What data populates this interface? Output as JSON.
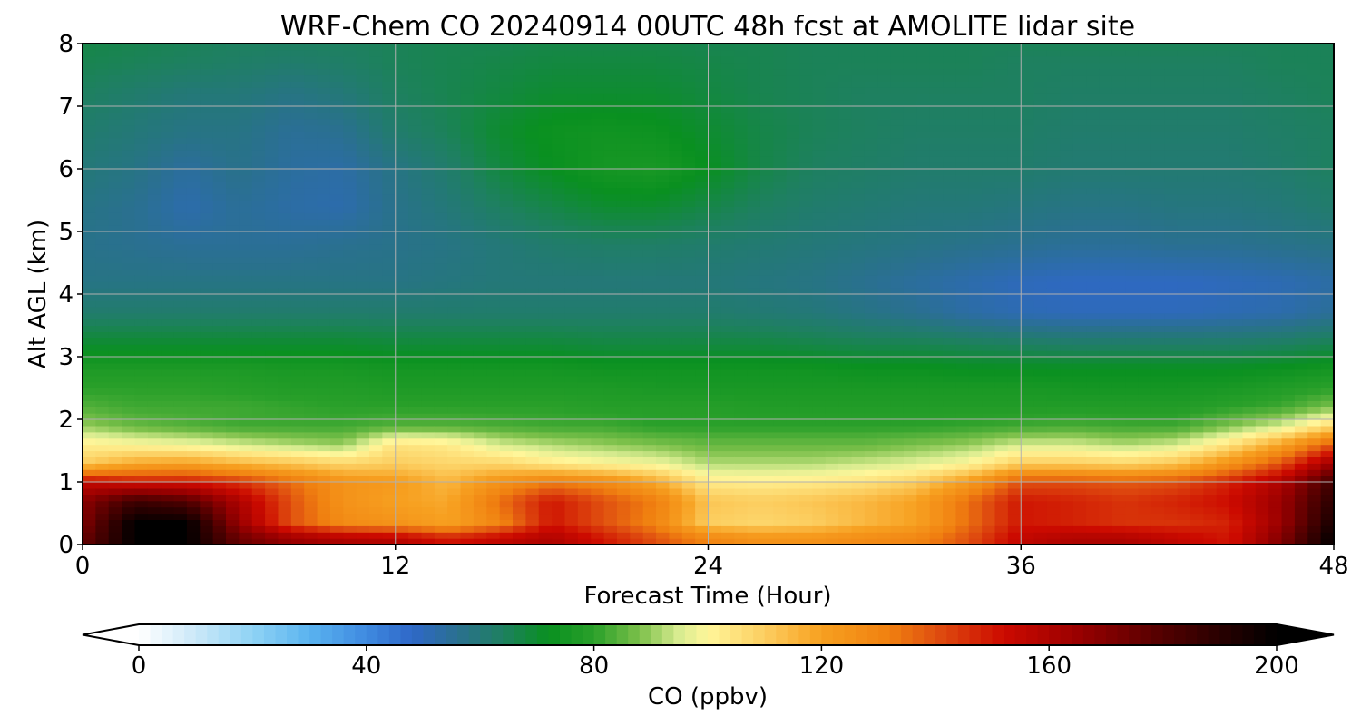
{
  "chart_data": {
    "type": "heatmap",
    "title": "WRF-Chem CO  20240914 00UTC 48h fcst at AMOLITE lidar site",
    "xlabel": "Forecast Time (Hour)",
    "ylabel": "Alt AGL (km)",
    "xlim": [
      0,
      48
    ],
    "ylim": [
      0,
      8
    ],
    "xticks": [
      0,
      12,
      24,
      36,
      48
    ],
    "yticks": [
      0,
      1,
      2,
      3,
      4,
      5,
      6,
      7,
      8
    ],
    "grid": true,
    "x": [
      0,
      2,
      4,
      6,
      8,
      10,
      12,
      14,
      16,
      18,
      20,
      22,
      24,
      26,
      28,
      30,
      32,
      34,
      36,
      38,
      40,
      42,
      44,
      46,
      48
    ],
    "y": [
      0.1,
      0.35,
      0.7,
      1.0,
      1.3,
      1.6,
      1.9,
      2.2,
      2.5,
      2.8,
      3.2,
      3.7,
      4.2,
      4.8,
      5.4,
      6.0,
      6.6,
      7.2,
      7.7,
      8.0
    ],
    "z": [
      [
        175,
        200,
        200,
        175,
        165,
        160,
        158,
        150,
        155,
        160,
        150,
        140,
        130,
        125,
        125,
        128,
        130,
        140,
        155,
        160,
        160,
        155,
        150,
        170,
        200
      ],
      [
        170,
        200,
        200,
        165,
        140,
        128,
        125,
        120,
        130,
        150,
        140,
        130,
        110,
        108,
        110,
        115,
        120,
        135,
        150,
        148,
        145,
        145,
        148,
        165,
        195
      ],
      [
        168,
        185,
        180,
        160,
        140,
        125,
        120,
        118,
        135,
        150,
        140,
        132,
        112,
        110,
        112,
        115,
        120,
        135,
        150,
        148,
        145,
        148,
        152,
        165,
        190
      ],
      [
        155,
        150,
        150,
        145,
        135,
        125,
        122,
        115,
        125,
        132,
        128,
        118,
        103,
        102,
        103,
        105,
        110,
        122,
        140,
        140,
        138,
        140,
        148,
        160,
        185
      ],
      [
        110,
        118,
        120,
        115,
        112,
        108,
        110,
        108,
        108,
        103,
        100,
        98,
        92,
        92,
        92,
        94,
        96,
        100,
        110,
        110,
        108,
        112,
        125,
        140,
        165
      ],
      [
        102,
        100,
        98,
        95,
        92,
        90,
        105,
        103,
        95,
        92,
        90,
        88,
        86,
        86,
        86,
        86,
        88,
        90,
        95,
        95,
        92,
        95,
        105,
        120,
        140
      ],
      [
        90,
        86,
        84,
        82,
        82,
        82,
        84,
        84,
        83,
        82,
        82,
        80,
        80,
        80,
        80,
        80,
        80,
        81,
        82,
        83,
        82,
        82,
        88,
        95,
        108
      ],
      [
        84,
        82,
        82,
        82,
        81,
        80,
        80,
        80,
        80,
        80,
        79,
        79,
        79,
        78,
        78,
        78,
        78,
        78,
        78,
        78,
        78,
        78,
        80,
        82,
        88
      ],
      [
        80,
        80,
        80,
        79,
        78,
        78,
        77,
        77,
        77,
        77,
        77,
        76,
        76,
        76,
        76,
        76,
        76,
        76,
        76,
        75,
        75,
        75,
        76,
        78,
        80
      ],
      [
        77,
        77,
        77,
        77,
        76,
        76,
        75,
        75,
        75,
        75,
        74,
        74,
        74,
        74,
        74,
        73,
        73,
        72,
        72,
        72,
        72,
        72,
        72,
        73,
        75
      ],
      [
        70,
        70,
        70,
        70,
        70,
        70,
        69,
        69,
        69,
        69,
        68,
        68,
        68,
        68,
        67,
        66,
        66,
        65,
        64,
        63,
        63,
        63,
        63,
        64,
        66
      ],
      [
        62,
        62,
        62,
        62,
        62,
        62,
        62,
        62,
        62,
        62,
        62,
        62,
        62,
        61,
        60,
        58,
        56,
        53,
        51,
        50,
        50,
        50,
        51,
        52,
        55
      ],
      [
        58,
        58,
        58,
        58,
        58,
        58,
        58,
        59,
        60,
        60,
        60,
        60,
        60,
        59,
        58,
        56,
        54,
        52,
        50,
        49,
        49,
        49,
        50,
        51,
        53
      ],
      [
        57,
        56,
        55,
        55,
        55,
        56,
        57,
        58,
        60,
        62,
        63,
        63,
        62,
        61,
        60,
        59,
        58,
        57,
        56,
        55,
        55,
        56,
        56,
        57,
        58
      ],
      [
        58,
        56,
        52,
        55,
        53,
        52,
        57,
        60,
        64,
        67,
        70,
        70,
        67,
        64,
        62,
        61,
        60,
        60,
        59,
        58,
        58,
        59,
        59,
        60,
        62
      ],
      [
        60,
        58,
        54,
        57,
        54,
        53,
        58,
        62,
        68,
        72,
        75,
        76,
        72,
        67,
        64,
        63,
        62,
        62,
        62,
        61,
        61,
        61,
        61,
        62,
        64
      ],
      [
        62,
        60,
        58,
        58,
        55,
        56,
        62,
        65,
        70,
        73,
        74,
        73,
        70,
        67,
        65,
        64,
        63,
        63,
        63,
        62,
        62,
        62,
        62,
        63,
        64
      ],
      [
        64,
        62,
        60,
        60,
        58,
        60,
        64,
        66,
        68,
        70,
        70,
        70,
        68,
        66,
        65,
        64,
        64,
        64,
        64,
        63,
        63,
        63,
        63,
        64,
        65
      ],
      [
        66,
        65,
        64,
        63,
        62,
        63,
        65,
        66,
        67,
        68,
        68,
        68,
        67,
        66,
        65,
        65,
        65,
        65,
        64,
        64,
        64,
        64,
        64,
        65,
        65
      ],
      [
        67,
        66,
        65,
        64,
        64,
        64,
        65,
        66,
        66,
        67,
        67,
        67,
        66,
        66,
        65,
        65,
        65,
        65,
        65,
        65,
        65,
        65,
        65,
        65,
        65
      ]
    ],
    "colorbar": {
      "label": "CO  (ppbv)",
      "min": 0,
      "max": 200,
      "ticks": [
        0,
        40,
        80,
        120,
        160,
        200
      ],
      "extend": "both",
      "stops": [
        {
          "v": 0,
          "c": "#ffffff"
        },
        {
          "v": 10,
          "c": "#cbe8f8"
        },
        {
          "v": 20,
          "c": "#8fd3f5"
        },
        {
          "v": 30,
          "c": "#5ab3ef"
        },
        {
          "v": 40,
          "c": "#3f8ae0"
        },
        {
          "v": 48,
          "c": "#2f68c8"
        },
        {
          "v": 56,
          "c": "#2a7090"
        },
        {
          "v": 64,
          "c": "#1e8060"
        },
        {
          "v": 72,
          "c": "#099020"
        },
        {
          "v": 80,
          "c": "#2aa02a"
        },
        {
          "v": 88,
          "c": "#7cc04a"
        },
        {
          "v": 95,
          "c": "#d8ec90"
        },
        {
          "v": 100,
          "c": "#fff69a"
        },
        {
          "v": 110,
          "c": "#fcce60"
        },
        {
          "v": 120,
          "c": "#f7a020"
        },
        {
          "v": 132,
          "c": "#f08010"
        },
        {
          "v": 140,
          "c": "#e05010"
        },
        {
          "v": 152,
          "c": "#cc0a00"
        },
        {
          "v": 165,
          "c": "#9a0000"
        },
        {
          "v": 180,
          "c": "#520000"
        },
        {
          "v": 200,
          "c": "#000000"
        }
      ]
    }
  }
}
